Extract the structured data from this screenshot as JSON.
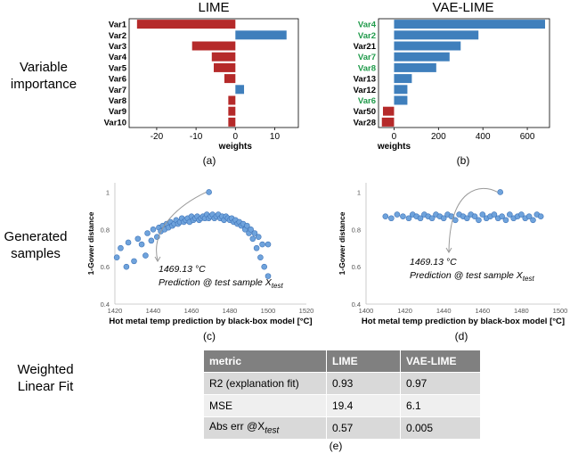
{
  "row_labels": {
    "variable_importance": [
      "Variable",
      "importance"
    ],
    "generated_samples": [
      "Generated",
      "samples"
    ],
    "weighted_fit": [
      "Weighted",
      "Linear Fit"
    ]
  },
  "captions": {
    "a": "(a)",
    "b": "(b)",
    "c": "(c)",
    "d": "(d)",
    "e": "(e)"
  },
  "chart_data": [
    {
      "id": "a",
      "type": "bar",
      "orientation": "horizontal",
      "title": "LIME",
      "xlabel": "weights",
      "categories": [
        "Var1",
        "Var2",
        "Var3",
        "Var4",
        "Var5",
        "Var6",
        "Var7",
        "Var8",
        "Var9",
        "Var10"
      ],
      "values": [
        -25,
        13,
        -11,
        -6,
        -5.5,
        -2.8,
        2.2,
        -1.8,
        -1.8,
        -1.8
      ],
      "xlim": [
        -27,
        16
      ],
      "xticks": [
        -20,
        -10,
        0,
        10
      ],
      "xtick_labels": [
        "-20",
        "-10",
        "0",
        "10"
      ],
      "colors": {
        "negative": "#b52a2a",
        "positive": "#3f7fbc"
      },
      "label_colors": [
        "#000000",
        "#000000",
        "#000000",
        "#000000",
        "#000000",
        "#000000",
        "#000000",
        "#000000",
        "#000000",
        "#000000"
      ]
    },
    {
      "id": "b",
      "type": "bar",
      "orientation": "horizontal",
      "title": "VAE-LIME",
      "xlabel": "weights",
      "categories": [
        "Var4",
        "Var2",
        "Var21",
        "Var7",
        "Var8",
        "Var13",
        "Var12",
        "Var6",
        "Var50",
        "Var28"
      ],
      "values": [
        680,
        380,
        300,
        250,
        190,
        80,
        60,
        60,
        -50,
        -55
      ],
      "xlim": [
        -70,
        700
      ],
      "xticks": [
        0,
        200,
        400,
        600
      ],
      "xtick_labels": [
        "0",
        "200",
        "400",
        "600"
      ],
      "colors": {
        "negative": "#b52a2a",
        "positive": "#3f7fbc"
      },
      "label_colors": [
        "#1f9a4a",
        "#1f9a4a",
        "#000000",
        "#1f9a4a",
        "#1f9a4a",
        "#000000",
        "#000000",
        "#1f9a4a",
        "#000000",
        "#000000"
      ]
    },
    {
      "id": "c",
      "type": "scatter",
      "xlabel": "Hot metal temp prediction by black-box model [°C]",
      "ylabel": "1-Gower distance",
      "xlim": [
        1420,
        1520
      ],
      "ylim": [
        0.4,
        1.05
      ],
      "xticks": [
        1420,
        1440,
        1460,
        1480,
        1500,
        1520
      ],
      "yticks": [
        0.4,
        0.6,
        0.8,
        1.0
      ],
      "ytick_labels": [
        "0.4",
        "0.6",
        "0.8",
        "1"
      ],
      "point_color": "#6fa3dc",
      "annotation": {
        "value": "1469.13 °C",
        "line1": "Prediction @ test sample X",
        "subscript": "test",
        "x": 1469.13,
        "y": 1.0
      },
      "points": [
        [
          1421,
          0.65
        ],
        [
          1423,
          0.7
        ],
        [
          1426,
          0.6
        ],
        [
          1427,
          0.73
        ],
        [
          1430,
          0.63
        ],
        [
          1432,
          0.75
        ],
        [
          1434,
          0.72
        ],
        [
          1436,
          0.66
        ],
        [
          1437,
          0.78
        ],
        [
          1439,
          0.74
        ],
        [
          1440,
          0.8
        ],
        [
          1442,
          0.76
        ],
        [
          1443,
          0.81
        ],
        [
          1444,
          0.79
        ],
        [
          1445,
          0.82
        ],
        [
          1446,
          0.8
        ],
        [
          1447,
          0.83
        ],
        [
          1448,
          0.81
        ],
        [
          1449,
          0.84
        ],
        [
          1450,
          0.82
        ],
        [
          1451,
          0.83
        ],
        [
          1452,
          0.85
        ],
        [
          1453,
          0.83
        ],
        [
          1454,
          0.84
        ],
        [
          1455,
          0.86
        ],
        [
          1456,
          0.84
        ],
        [
          1457,
          0.85
        ],
        [
          1458,
          0.86
        ],
        [
          1459,
          0.84
        ],
        [
          1460,
          0.87
        ],
        [
          1461,
          0.85
        ],
        [
          1462,
          0.86
        ],
        [
          1463,
          0.87
        ],
        [
          1464,
          0.85
        ],
        [
          1465,
          0.86
        ],
        [
          1466,
          0.87
        ],
        [
          1467,
          0.86
        ],
        [
          1468,
          0.88
        ],
        [
          1469,
          0.86
        ],
        [
          1470,
          0.87
        ],
        [
          1471,
          0.88
        ],
        [
          1472,
          0.86
        ],
        [
          1473,
          0.87
        ],
        [
          1474,
          0.88
        ],
        [
          1475,
          0.86
        ],
        [
          1476,
          0.87
        ],
        [
          1477,
          0.85
        ],
        [
          1478,
          0.87
        ],
        [
          1479,
          0.86
        ],
        [
          1480,
          0.85
        ],
        [
          1481,
          0.86
        ],
        [
          1482,
          0.84
        ],
        [
          1483,
          0.85
        ],
        [
          1484,
          0.83
        ],
        [
          1485,
          0.84
        ],
        [
          1486,
          0.82
        ],
        [
          1487,
          0.83
        ],
        [
          1488,
          0.8
        ],
        [
          1489,
          0.82
        ],
        [
          1490,
          0.78
        ],
        [
          1491,
          0.8
        ],
        [
          1492,
          0.75
        ],
        [
          1493,
          0.78
        ],
        [
          1494,
          0.7
        ],
        [
          1495,
          0.76
        ],
        [
          1496,
          0.65
        ],
        [
          1497,
          0.72
        ],
        [
          1498,
          0.6
        ],
        [
          1500,
          0.55
        ],
        [
          1500,
          0.72
        ],
        [
          1469.13,
          1.0
        ]
      ]
    },
    {
      "id": "d",
      "type": "scatter",
      "xlabel": "Hot metal temp prediction by black-box model [°C]",
      "ylabel": "1-Gower distance",
      "xlim": [
        1400,
        1500
      ],
      "ylim": [
        0.4,
        1.05
      ],
      "xticks": [
        1400,
        1420,
        1440,
        1460,
        1480,
        1500
      ],
      "yticks": [
        0.4,
        0.6,
        0.8,
        1.0
      ],
      "ytick_labels": [
        "0.4",
        "0.6",
        "0.8",
        "1"
      ],
      "point_color": "#6fa3dc",
      "annotation": {
        "value": "1469.13 °C",
        "line1": "Prediction @ test sample X",
        "subscript": "test",
        "x": 1469.13,
        "y": 1.0
      },
      "points": [
        [
          1410,
          0.87
        ],
        [
          1413,
          0.86
        ],
        [
          1416,
          0.88
        ],
        [
          1419,
          0.87
        ],
        [
          1422,
          0.86
        ],
        [
          1424,
          0.88
        ],
        [
          1426,
          0.87
        ],
        [
          1428,
          0.86
        ],
        [
          1430,
          0.88
        ],
        [
          1432,
          0.87
        ],
        [
          1434,
          0.86
        ],
        [
          1436,
          0.88
        ],
        [
          1438,
          0.87
        ],
        [
          1440,
          0.86
        ],
        [
          1442,
          0.88
        ],
        [
          1444,
          0.87
        ],
        [
          1446,
          0.85
        ],
        [
          1448,
          0.88
        ],
        [
          1450,
          0.87
        ],
        [
          1452,
          0.86
        ],
        [
          1454,
          0.88
        ],
        [
          1456,
          0.87
        ],
        [
          1458,
          0.85
        ],
        [
          1460,
          0.88
        ],
        [
          1462,
          0.86
        ],
        [
          1464,
          0.87
        ],
        [
          1466,
          0.88
        ],
        [
          1468,
          0.86
        ],
        [
          1470,
          0.87
        ],
        [
          1472,
          0.85
        ],
        [
          1474,
          0.88
        ],
        [
          1476,
          0.86
        ],
        [
          1478,
          0.87
        ],
        [
          1480,
          0.88
        ],
        [
          1482,
          0.86
        ],
        [
          1484,
          0.87
        ],
        [
          1486,
          0.85
        ],
        [
          1488,
          0.88
        ],
        [
          1490,
          0.87
        ],
        [
          1469.13,
          1.0
        ]
      ]
    }
  ],
  "table": {
    "headers": [
      "metric",
      "LIME",
      "VAE-LIME"
    ],
    "rows": [
      {
        "metric": "R2 (explanation fit)",
        "lime": "0.93",
        "vae": "0.97"
      },
      {
        "metric": "MSE",
        "lime": "19.4",
        "vae": "6.1"
      },
      {
        "metric": "Abs err @X",
        "metric_sub": "test",
        "lime": "0.57",
        "vae": "0.005"
      }
    ]
  }
}
